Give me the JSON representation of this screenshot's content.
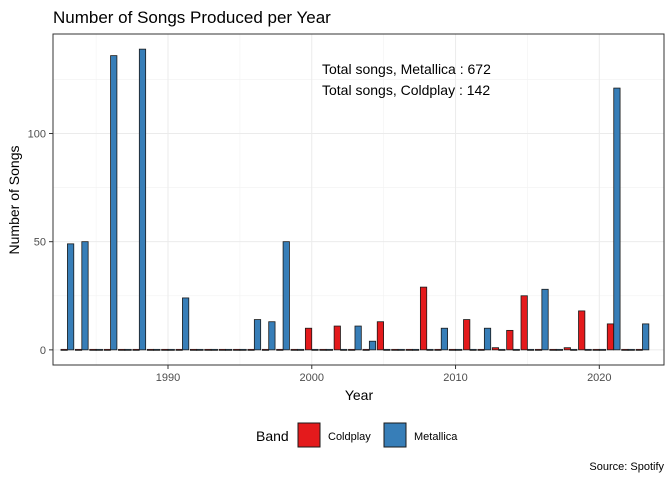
{
  "chart_data": {
    "type": "bar",
    "title": "Number of Songs Produced per Year",
    "xlabel": "Year",
    "ylabel": "Number of Songs",
    "caption": "Source: Spotify",
    "xlim": [
      1982,
      2024.5
    ],
    "ylim": [
      -7,
      146
    ],
    "x_ticks": [
      1990,
      2000,
      2010,
      2020
    ],
    "y_ticks": [
      0,
      50,
      100
    ],
    "grid": true,
    "legend": {
      "title": "Band",
      "position": "bottom"
    },
    "annotations": [
      "Total songs, Metallica : 672",
      "Total songs, Coldplay : 142"
    ],
    "colors": {
      "Coldplay": "#e41a1c",
      "Metallica": "#377eb8"
    },
    "x": [
      1983,
      1984,
      1985,
      1986,
      1987,
      1988,
      1989,
      1990,
      1991,
      1992,
      1993,
      1994,
      1995,
      1996,
      1997,
      1998,
      1999,
      2000,
      2001,
      2002,
      2003,
      2004,
      2005,
      2006,
      2007,
      2008,
      2009,
      2010,
      2011,
      2012,
      2013,
      2014,
      2015,
      2016,
      2017,
      2018,
      2019,
      2020,
      2021,
      2022,
      2023
    ],
    "series": [
      {
        "name": "Coldplay",
        "values": [
          0,
          0,
          0,
          0,
          0,
          0,
          0,
          0,
          0,
          0,
          0,
          0,
          0,
          0,
          0,
          0,
          0,
          10,
          0,
          11,
          0,
          0,
          13,
          0,
          0,
          29,
          0,
          0,
          14,
          0,
          1,
          9,
          25,
          0,
          0,
          1,
          18,
          0,
          12,
          0,
          0
        ]
      },
      {
        "name": "Metallica",
        "values": [
          49,
          50,
          0,
          136,
          0,
          139,
          0,
          0,
          24,
          0,
          0,
          0,
          0,
          14,
          13,
          50,
          0,
          0,
          0,
          0,
          11,
          4,
          0,
          0,
          0,
          0,
          10,
          0,
          0,
          10,
          0,
          0,
          0,
          28,
          0,
          0,
          0,
          0,
          121,
          0,
          12
        ]
      }
    ]
  }
}
